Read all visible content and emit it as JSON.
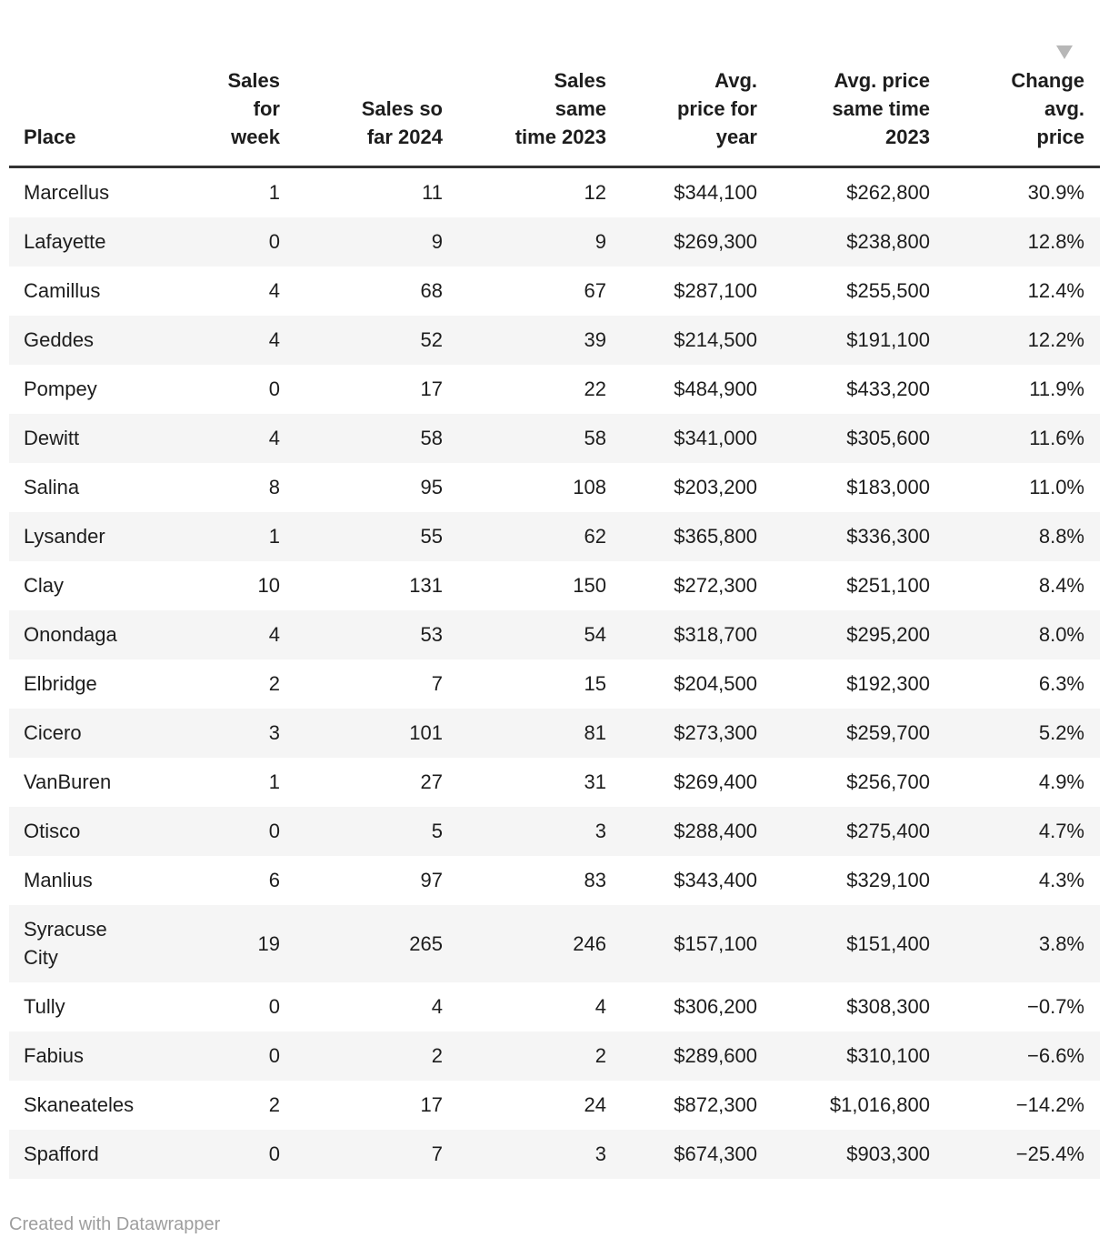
{
  "table": {
    "columns": [
      {
        "id": "place",
        "label": "Place"
      },
      {
        "id": "sales-week",
        "label": "Sales\nfor\nweek"
      },
      {
        "id": "sales-2024",
        "label": "Sales so\nfar 2024"
      },
      {
        "id": "sales-2023",
        "label": "Sales\nsame\ntime 2023"
      },
      {
        "id": "avg-price-year",
        "label": "Avg.\nprice for\nyear"
      },
      {
        "id": "avg-price-2023",
        "label": "Avg. price\nsame time\n2023"
      },
      {
        "id": "change-price",
        "label": "Change\navg.\nprice",
        "sorted": "desc"
      }
    ],
    "rows": [
      [
        "Marcellus",
        "1",
        "11",
        "12",
        "$344,100",
        "$262,800",
        "30.9%"
      ],
      [
        "Lafayette",
        "0",
        "9",
        "9",
        "$269,300",
        "$238,800",
        "12.8%"
      ],
      [
        "Camillus",
        "4",
        "68",
        "67",
        "$287,100",
        "$255,500",
        "12.4%"
      ],
      [
        "Geddes",
        "4",
        "52",
        "39",
        "$214,500",
        "$191,100",
        "12.2%"
      ],
      [
        "Pompey",
        "0",
        "17",
        "22",
        "$484,900",
        "$433,200",
        "11.9%"
      ],
      [
        "Dewitt",
        "4",
        "58",
        "58",
        "$341,000",
        "$305,600",
        "11.6%"
      ],
      [
        "Salina",
        "8",
        "95",
        "108",
        "$203,200",
        "$183,000",
        "11.0%"
      ],
      [
        "Lysander",
        "1",
        "55",
        "62",
        "$365,800",
        "$336,300",
        "8.8%"
      ],
      [
        "Clay",
        "10",
        "131",
        "150",
        "$272,300",
        "$251,100",
        "8.4%"
      ],
      [
        "Onondaga",
        "4",
        "53",
        "54",
        "$318,700",
        "$295,200",
        "8.0%"
      ],
      [
        "Elbridge",
        "2",
        "7",
        "15",
        "$204,500",
        "$192,300",
        "6.3%"
      ],
      [
        "Cicero",
        "3",
        "101",
        "81",
        "$273,300",
        "$259,700",
        "5.2%"
      ],
      [
        "VanBuren",
        "1",
        "27",
        "31",
        "$269,400",
        "$256,700",
        "4.9%"
      ],
      [
        "Otisco",
        "0",
        "5",
        "3",
        "$288,400",
        "$275,400",
        "4.7%"
      ],
      [
        "Manlius",
        "6",
        "97",
        "83",
        "$343,400",
        "$329,100",
        "4.3%"
      ],
      [
        "Syracuse\nCity",
        "19",
        "265",
        "246",
        "$157,100",
        "$151,400",
        "3.8%"
      ],
      [
        "Tully",
        "0",
        "4",
        "4",
        "$306,200",
        "$308,300",
        "−0.7%"
      ],
      [
        "Fabius",
        "0",
        "2",
        "2",
        "$289,600",
        "$310,100",
        "−6.6%"
      ],
      [
        "Skaneateles",
        "2",
        "17",
        "24",
        "$872,300",
        "$1,016,800",
        "−14.2%"
      ],
      [
        "Spafford",
        "0",
        "7",
        "3",
        "$674,300",
        "$903,300",
        "−25.4%"
      ]
    ]
  },
  "footer": {
    "credit": "Created with Datawrapper"
  },
  "colors": {
    "text": "#1d1d1d",
    "header_rule": "#333333",
    "row_stripe": "#f5f5f5",
    "sort_arrow": "#b7b7b7",
    "credit_text": "#9e9e9e"
  },
  "chart_data": {
    "type": "table",
    "title": "",
    "columns": [
      "Place",
      "Sales for week",
      "Sales so far 2024",
      "Sales same time 2023",
      "Avg. price for year",
      "Avg. price same time 2023",
      "Change avg. price"
    ],
    "rows": [
      [
        "Marcellus",
        1,
        11,
        12,
        344100,
        262800,
        30.9
      ],
      [
        "Lafayette",
        0,
        9,
        9,
        269300,
        238800,
        12.8
      ],
      [
        "Camillus",
        4,
        68,
        67,
        287100,
        255500,
        12.4
      ],
      [
        "Geddes",
        4,
        52,
        39,
        214500,
        191100,
        12.2
      ],
      [
        "Pompey",
        0,
        17,
        22,
        484900,
        433200,
        11.9
      ],
      [
        "Dewitt",
        4,
        58,
        58,
        341000,
        305600,
        11.6
      ],
      [
        "Salina",
        8,
        95,
        108,
        203200,
        183000,
        11.0
      ],
      [
        "Lysander",
        1,
        55,
        62,
        365800,
        336300,
        8.8
      ],
      [
        "Clay",
        10,
        131,
        150,
        272300,
        251100,
        8.4
      ],
      [
        "Onondaga",
        4,
        53,
        54,
        318700,
        295200,
        8.0
      ],
      [
        "Elbridge",
        2,
        7,
        15,
        204500,
        192300,
        6.3
      ],
      [
        "Cicero",
        3,
        101,
        81,
        273300,
        259700,
        5.2
      ],
      [
        "VanBuren",
        1,
        27,
        31,
        269400,
        256700,
        4.9
      ],
      [
        "Otisco",
        0,
        5,
        3,
        288400,
        275400,
        4.7
      ],
      [
        "Manlius",
        6,
        97,
        83,
        343400,
        329100,
        4.3
      ],
      [
        "Syracuse City",
        19,
        265,
        246,
        157100,
        151400,
        3.8
      ],
      [
        "Tully",
        0,
        4,
        4,
        306200,
        308300,
        -0.7
      ],
      [
        "Fabius",
        0,
        2,
        2,
        289600,
        310100,
        -6.6
      ],
      [
        "Skaneateles",
        2,
        17,
        24,
        872300,
        1016800,
        -14.2
      ],
      [
        "Spafford",
        0,
        7,
        3,
        674300,
        903300,
        -25.4
      ]
    ],
    "sort": {
      "column": "Change avg. price",
      "direction": "desc"
    },
    "legend_position": "none",
    "grid": false
  }
}
